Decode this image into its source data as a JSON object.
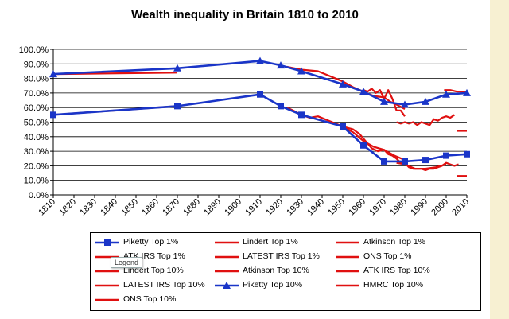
{
  "chart_data": {
    "type": "line",
    "title": "Wealth inequality  in Britain 1810 to 2010",
    "xlabel": "",
    "ylabel": "",
    "xlim": [
      1810,
      2010
    ],
    "ylim": [
      0,
      100
    ],
    "x_ticks": [
      "1810",
      "1820",
      "1830",
      "1840",
      "1850",
      "1860",
      "1870",
      "1880",
      "1890",
      "1900",
      "1910",
      "1920",
      "1930",
      "1940",
      "1950",
      "1960",
      "1970",
      "1980",
      "1990",
      "2000",
      "2010"
    ],
    "y_ticks": [
      "0.0%",
      "10.0%",
      "20.0%",
      "30.0%",
      "40.0%",
      "50.0%",
      "60.0%",
      "70.0%",
      "80.0%",
      "90.0%",
      "100.0%"
    ],
    "series": [
      {
        "name": "Piketty Top 1%",
        "color": "#1a35c8",
        "marker": "square",
        "x": [
          1810,
          1870,
          1910,
          1920,
          1930,
          1950,
          1960,
          1970,
          1980,
          1990,
          2000,
          2010
        ],
        "y": [
          55,
          61,
          69,
          61,
          55,
          47,
          34,
          23,
          23,
          24,
          27,
          28
        ]
      },
      {
        "name": "Lindert Top 1%",
        "color": "#e01010",
        "x": [
          1810,
          1870
        ],
        "y": [
          55,
          61
        ]
      },
      {
        "name": "Atkinson Top 1%",
        "color": "#e01010",
        "x": [
          1923,
          1926,
          1930,
          1934,
          1938,
          1950,
          1955,
          1958,
          1961,
          1964,
          1967,
          1970,
          1972,
          1974,
          1976,
          1978,
          1980,
          1982,
          1984,
          1986,
          1988,
          1990,
          1992,
          1994,
          1996,
          1998,
          2000,
          2002,
          2004,
          2006
        ],
        "y": [
          60,
          58,
          55,
          53,
          54,
          47,
          45,
          42,
          37,
          32,
          30,
          31,
          28,
          27,
          25,
          22,
          22,
          19,
          18,
          18,
          18,
          17,
          18,
          18,
          19,
          20,
          22,
          21,
          20,
          21
        ]
      },
      {
        "name": "ATK IRS Top 1%",
        "color": "#e01010",
        "x": [
          1950,
          1955,
          1960,
          1965,
          1970,
          1975,
          1980
        ],
        "y": [
          47,
          43,
          37,
          33,
          31,
          27,
          24
        ]
      },
      {
        "name": "LATEST IRS Top 1%",
        "color": "#e01010",
        "x": [
          2005,
          2010
        ],
        "y": [
          13,
          13
        ]
      },
      {
        "name": "ONS Top 1%",
        "color": "#e01010",
        "x": [
          1976,
          1980,
          1985,
          1990,
          1995,
          2000
        ],
        "y": [
          22,
          21,
          18,
          18,
          19,
          21
        ]
      },
      {
        "name": "Lindert Top 10%",
        "color": "#e01010",
        "x": [
          1810,
          1870
        ],
        "y": [
          83,
          84
        ]
      },
      {
        "name": "Atkinson Top 10%",
        "color": "#e01010",
        "x": [
          1923,
          1930,
          1938,
          1950,
          1955,
          1960,
          1965,
          1970,
          1973,
          1976,
          1980
        ],
        "y": [
          88,
          86,
          85,
          78,
          74,
          71,
          68,
          67,
          64,
          62,
          59
        ]
      },
      {
        "name": "ATK IRS Top 10%",
        "color": "#e01010",
        "x": [
          1960,
          1962,
          1964,
          1966,
          1968,
          1970,
          1972,
          1974,
          1976,
          1978,
          1980
        ],
        "y": [
          72,
          71,
          73,
          70,
          72,
          66,
          72,
          66,
          58,
          58,
          54
        ]
      },
      {
        "name": "LATEST IRS Top 10%",
        "color": "#e01010",
        "x": [
          2005,
          2010
        ],
        "y": [
          44,
          44
        ]
      },
      {
        "name": "Piketty Top 10%",
        "color": "#1a35c8",
        "marker": "triangle",
        "x": [
          1810,
          1870,
          1910,
          1920,
          1930,
          1950,
          1960,
          1970,
          1980,
          1990,
          2000,
          2010
        ],
        "y": [
          83,
          87,
          92,
          89,
          85,
          76,
          71,
          64,
          62,
          64,
          69,
          70
        ]
      },
      {
        "name": "HMRC Top 10%",
        "color": "#e01010",
        "x": [
          1976,
          1978,
          1980,
          1982,
          1984,
          1986,
          1988,
          1990,
          1992,
          1994,
          1996,
          1998,
          2000,
          2002,
          2004
        ],
        "y": [
          50,
          49,
          50,
          49,
          50,
          48,
          50,
          49,
          48,
          52,
          51,
          53,
          54,
          53,
          55
        ]
      },
      {
        "name": "ONS Top 10%",
        "color": "#e01010",
        "x": [
          1999,
          2002,
          2005,
          2008,
          2010
        ],
        "y": [
          72,
          72,
          71,
          71,
          71
        ]
      }
    ],
    "legend_position": "bottom"
  },
  "tooltip": "Legend"
}
